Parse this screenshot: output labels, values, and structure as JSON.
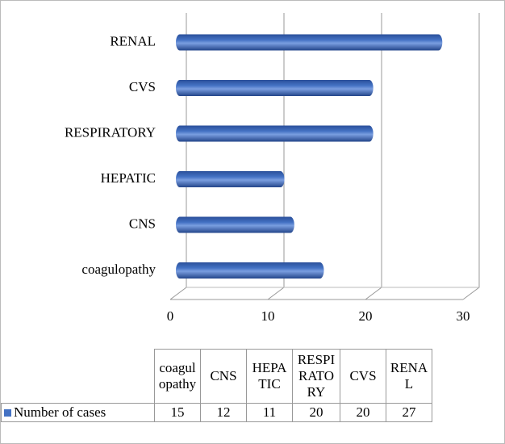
{
  "chart_data": {
    "type": "bar",
    "orientation": "horizontal",
    "categories": [
      "coagulopathy",
      "CNS",
      "HEPATIC",
      "RESPIRATORY",
      "CVS",
      "RENAL"
    ],
    "series": [
      {
        "name": "Number of cases",
        "color": "#4472c4",
        "values": [
          15,
          12,
          11,
          20,
          20,
          27
        ]
      }
    ],
    "xlim": [
      0,
      30
    ],
    "xticks": [
      0,
      10,
      20,
      30
    ],
    "grid": true,
    "data_table": true
  }
}
